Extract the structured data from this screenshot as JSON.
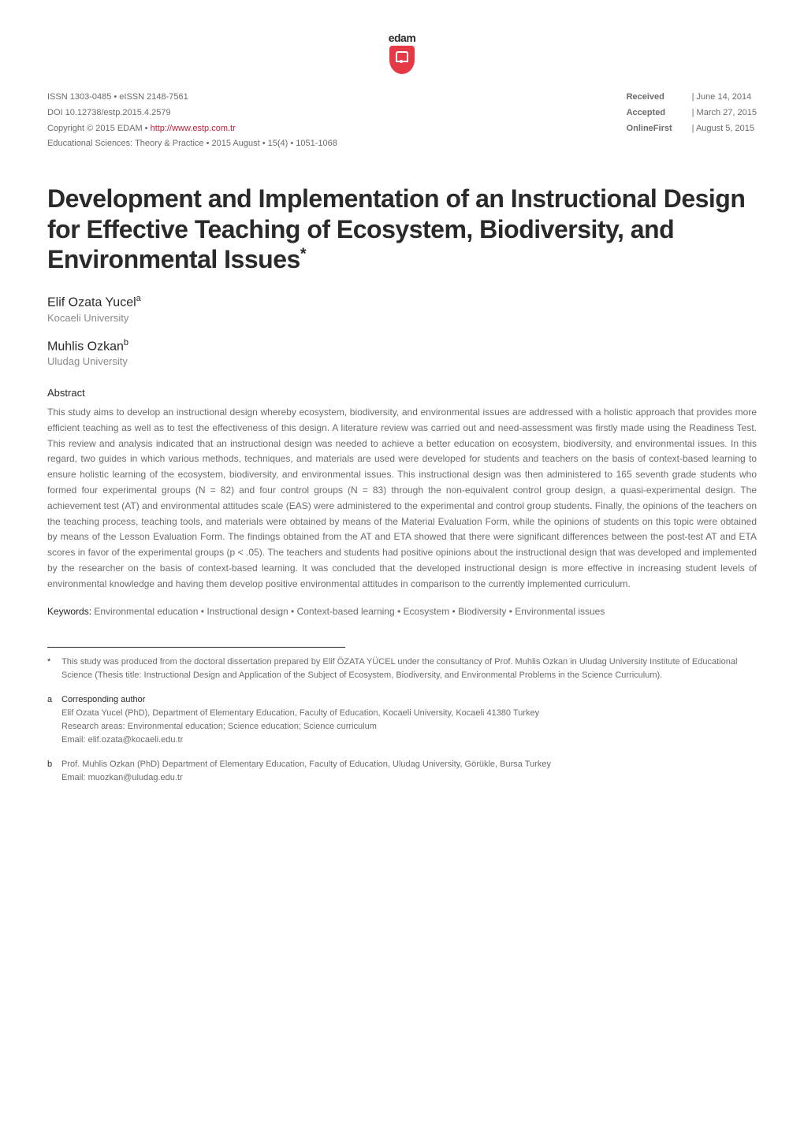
{
  "logo": {
    "text": "edam",
    "color": "#e63946"
  },
  "header": {
    "left": {
      "issn": "ISSN 1303-0485 • eISSN 2148-7561",
      "doi": "DOI 10.12738/estp.2015.4.2579",
      "copyright_prefix": "Copyright © 2015 EDAM • ",
      "copyright_link": "http://www.estp.com.tr",
      "journal": "Educational Sciences: Theory & Practice • 2015 August • 15(4) • 1051-1068"
    },
    "right": {
      "received_label": "Received",
      "received_value": "| June 14, 2014",
      "accepted_label": "Accepted",
      "accepted_value": "| March 27, 2015",
      "onlinefirst_label": "OnlineFirst",
      "onlinefirst_value": "| August 5, 2015"
    }
  },
  "title": "Development and Implementation of an Instructional Design for Effective Teaching of Ecosystem, Biodiversity, and Environmental Issues",
  "title_sup": "*",
  "authors": [
    {
      "name": "Elif Ozata Yucel",
      "sup": "a",
      "affiliation": "Kocaeli University"
    },
    {
      "name": "Muhlis Ozkan",
      "sup": "b",
      "affiliation": "Uludag University"
    }
  ],
  "abstract": {
    "heading": "Abstract",
    "text": "This study aims to develop an instructional design whereby ecosystem, biodiversity, and environmental issues are addressed with a holistic approach that provides more efficient teaching as well as to test the effectiveness of this design. A literature review was carried out and need-assessment was firstly made using the Readiness Test. This review and analysis indicated that an instructional design was needed to achieve a better education on ecosystem, biodiversity, and environmental issues. In this regard, two guides in which various methods, techniques, and materials are used were developed for students and teachers on the basis of context-based learning to ensure holistic learning of the ecosystem, biodiversity, and environmental issues. This instructional design was then administered to 165 seventh grade students who formed four experimental groups (N = 82) and four control groups (N = 83) through the non-equivalent control group design, a quasi-experimental design. The achievement test (AT) and environmental attitudes scale (EAS) were administered to the experimental and control group students. Finally, the opinions of the teachers on the teaching process, teaching tools, and materials were obtained by means of the Material Evaluation Form, while the opinions of students on this topic were obtained by means of the Lesson Evaluation Form. The findings obtained from the AT and ETA showed that there were significant differences between the post-test AT and ETA scores in favor of the experimental groups (p < .05). The teachers and students had positive opinions about the instructional design that was developed and implemented by the researcher on the basis of context-based learning. It was concluded that the developed instructional design is more effective in increasing student levels of environmental knowledge and having them develop positive environmental attitudes in comparison to the currently implemented curriculum."
  },
  "keywords": {
    "label": "Keywords:",
    "text": " Environmental education • Instructional design • Context-based learning • Ecosystem • Biodiversity • Environmental issues"
  },
  "footnotes": [
    {
      "marker": "*",
      "text": "This study was produced from the doctoral dissertation prepared by Elif ÖZATA YÜCEL under the consultancy of Prof. Muhlis Ozkan in Uludag University Institute of Educational Science (Thesis title: Instructional Design and Application of the Subject of Ecosystem, Biodiversity, and Environmental Problems in the Science Curriculum)."
    },
    {
      "marker": "a",
      "heading": "Corresponding author",
      "line1": "Elif Ozata Yucel (PhD), Department of Elementary Education, Faculty of Education, Kocaeli University, Kocaeli 41380 Turkey",
      "line2": "Research areas: Environmental education; Science education; Science curriculum",
      "line3": "Email: elif.ozata@kocaeli.edu.tr"
    },
    {
      "marker": "b",
      "line1": "Prof. Muhlis Ozkan (PhD) Department of Elementary Education, Faculty of Education, Uludag University, Görükle, Bursa Turkey",
      "line2": "Email: muozkan@uludag.edu.tr"
    }
  ],
  "styling": {
    "body_width": 1020,
    "body_padding": "40px 60px",
    "background_color": "#ffffff",
    "text_color_dark": "#2a2a2a",
    "text_color_muted": "#6b6b6b",
    "text_color_light": "#8a8a8a",
    "link_color": "#c41e3a",
    "title_fontsize": 32,
    "author_fontsize": 16,
    "body_fontsize": 12,
    "meta_fontsize": 11,
    "footnote_fontsize": 11,
    "line_height": 1.65
  }
}
